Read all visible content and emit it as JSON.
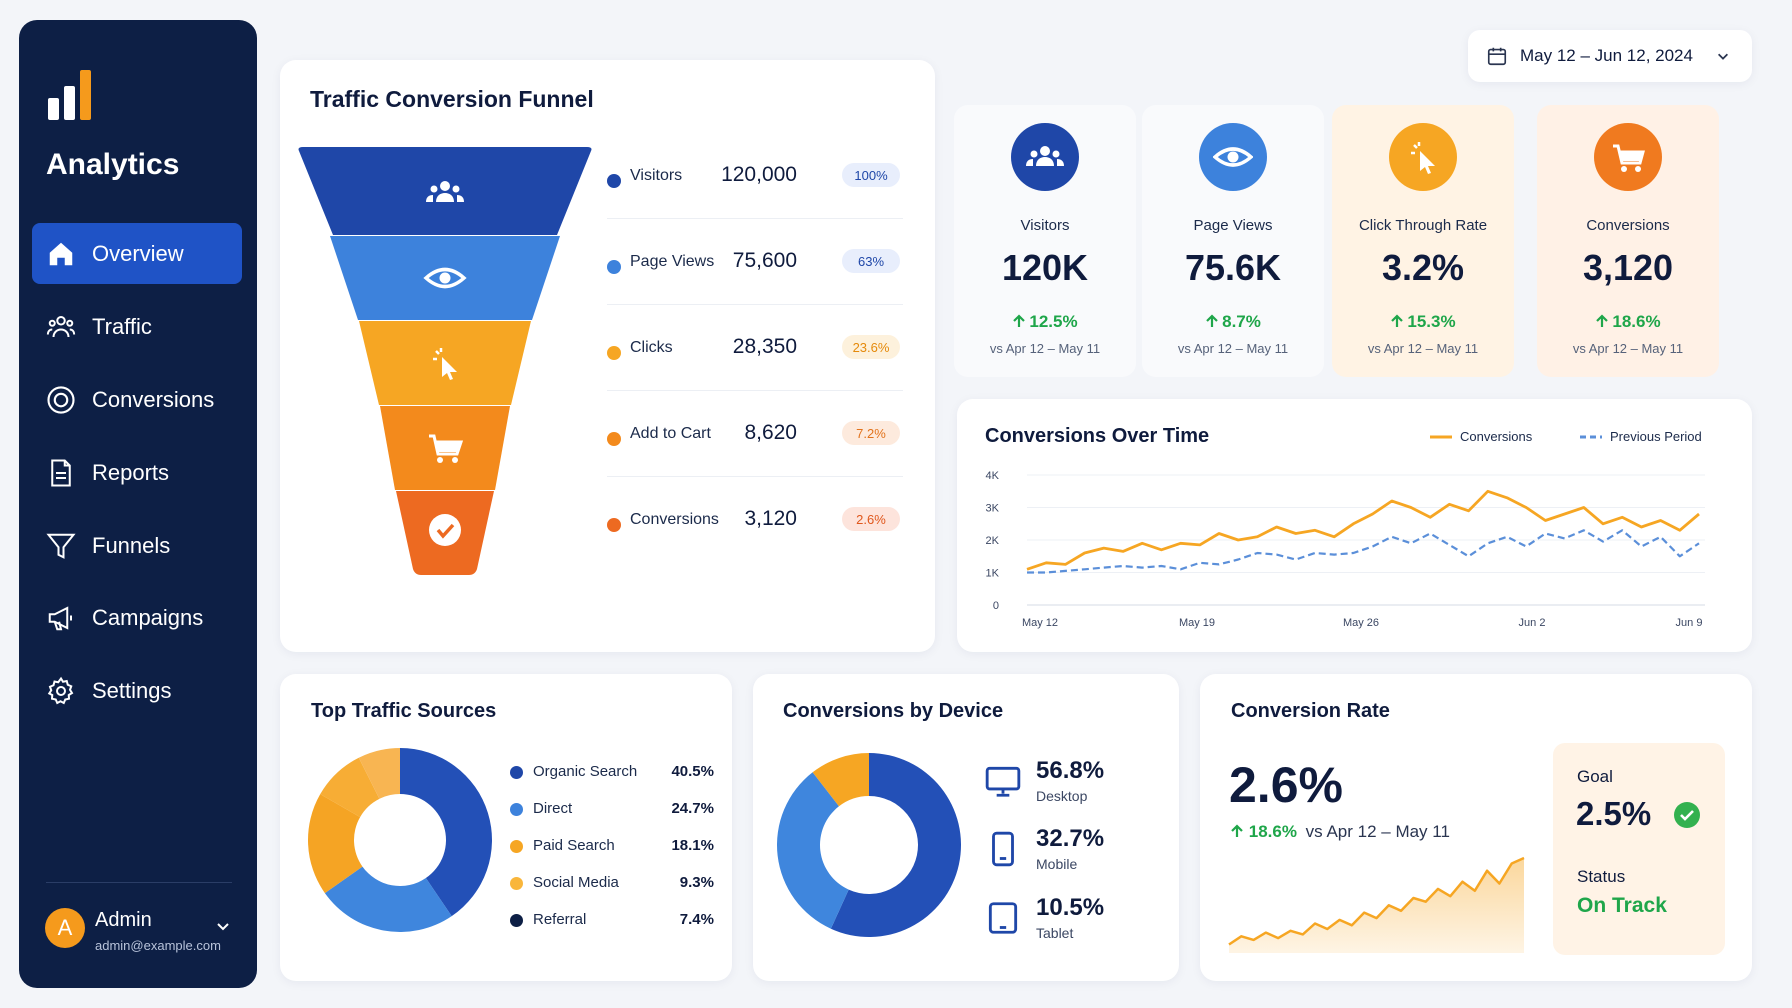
{
  "sidebar": {
    "app_name": "Analytics",
    "nav": [
      {
        "label": "Overview",
        "icon": "home-icon",
        "active": true
      },
      {
        "label": "Traffic",
        "icon": "users-icon"
      },
      {
        "label": "Conversions",
        "icon": "target-icon"
      },
      {
        "label": "Reports",
        "icon": "document-icon"
      },
      {
        "label": "Funnels",
        "icon": "filter-icon"
      },
      {
        "label": "Campaigns",
        "icon": "megaphone-icon"
      },
      {
        "label": "Settings",
        "icon": "gear-icon"
      }
    ],
    "user": {
      "initial": "A",
      "name": "Admin",
      "email": "admin@example.com"
    }
  },
  "date_range": {
    "label": "May 12 – Jun 12, 2024",
    "icon": "calendar-icon"
  },
  "funnel": {
    "title": "Traffic Conversion Funnel",
    "stages": [
      {
        "label": "Visitors",
        "value": "120,000",
        "pct": "100%",
        "color": "#1f47a8",
        "pct_bg": "#e8eefc",
        "pct_color": "#1f47a8",
        "icon": "users-icon"
      },
      {
        "label": "Page Views",
        "value": "75,600",
        "pct": "63%",
        "color": "#3d82dc",
        "pct_bg": "#e8eefc",
        "pct_color": "#1f47a8",
        "icon": "eye-icon"
      },
      {
        "label": "Clicks",
        "value": "28,350",
        "pct": "23.6%",
        "color": "#f6a623",
        "pct_bg": "#fdf1dc",
        "pct_color": "#e58a0c",
        "icon": "cursor-click-icon"
      },
      {
        "label": "Add to Cart",
        "value": "8,620",
        "pct": "7.2%",
        "color": "#f38a1c",
        "pct_bg": "#fdeadd",
        "pct_color": "#e2731c",
        "icon": "cart-icon"
      },
      {
        "label": "Conversions",
        "value": "3,120",
        "pct": "2.6%",
        "color": "#ed6a21",
        "pct_bg": "#fde4dc",
        "pct_color": "#e0571c",
        "icon": "check-icon"
      }
    ]
  },
  "kpis": [
    {
      "label": "Visitors",
      "value": "120K",
      "change": "12.5%",
      "compare": "vs Apr 12 – May 11",
      "icon": "users-icon",
      "color": "#1f47a8",
      "bg": "#f9fafc"
    },
    {
      "label": "Page Views",
      "value": "75.6K",
      "change": "8.7%",
      "compare": "vs Apr 12 – May 11",
      "icon": "eye-icon",
      "color": "#3d82dc",
      "bg": "#f9fafc"
    },
    {
      "label": "Click Through Rate",
      "value": "3.2%",
      "change": "15.3%",
      "compare": "vs Apr 12 – May 11",
      "icon": "cursor-click-icon",
      "color": "#f6a623",
      "bg": "#fff3e4"
    },
    {
      "label": "Conversions",
      "value": "3,120",
      "change": "18.6%",
      "compare": "vs Apr 12 – May 11",
      "icon": "cart-icon",
      "color": "#f07a1f",
      "bg": "#fff1e6"
    }
  ],
  "conversions_over_time": {
    "title": "Conversions Over Time",
    "chart_data": {
      "type": "line",
      "y_ticks": [
        "4K",
        "3K",
        "2K",
        "1K",
        "0"
      ],
      "x_labels": [
        "May 12",
        "May 19",
        "May 26",
        "Jun 2",
        "Jun 9"
      ],
      "ylim": [
        0,
        4000
      ],
      "series": [
        {
          "name": "Conversions",
          "color": "#f6a623",
          "dashed": false,
          "values": [
            1100,
            1300,
            1250,
            1600,
            1750,
            1650,
            1900,
            1700,
            1900,
            1850,
            2200,
            2000,
            2100,
            2400,
            2200,
            2300,
            2100,
            2500,
            2800,
            3200,
            3000,
            2700,
            3100,
            2900,
            3500,
            3300,
            3000,
            2600,
            2800,
            3000,
            2500,
            2700,
            2400,
            2600,
            2300,
            2800
          ]
        },
        {
          "name": "Previous Period",
          "color": "#5b8fd9",
          "dashed": true,
          "values": [
            1000,
            1000,
            1050,
            1100,
            1150,
            1200,
            1150,
            1200,
            1100,
            1300,
            1250,
            1400,
            1600,
            1550,
            1400,
            1600,
            1550,
            1600,
            1800,
            2100,
            1900,
            2200,
            1850,
            1500,
            1900,
            2100,
            1800,
            2200,
            2050,
            2300,
            1950,
            2300,
            1800,
            2100,
            1500,
            1900
          ]
        }
      ]
    }
  },
  "traffic_sources": {
    "title": "Top Traffic Sources",
    "chart_data": {
      "type": "pie",
      "donut": true,
      "labels": [
        "Organic Search",
        "Direct",
        "Paid Search",
        "Social Media",
        "Referral"
      ],
      "display": [
        "40.5%",
        "24.7%",
        "18.1%",
        "9.3%",
        "7.4%"
      ],
      "values": [
        40.5,
        24.7,
        18.1,
        9.3,
        7.4
      ],
      "colors": [
        "#1f47a8",
        "#3d82dc",
        "#f6a623",
        "#f9b63b",
        "#0d1f45"
      ],
      "slice_colors": [
        "#2350b7",
        "#3f86dd",
        "#f5a424",
        "#f7ad35",
        "#f8b552"
      ]
    }
  },
  "device": {
    "title": "Conversions by Device",
    "chart_data": {
      "type": "pie",
      "donut": true,
      "labels": [
        "Desktop",
        "Mobile",
        "Tablet"
      ],
      "display": [
        "56.8%",
        "32.7%",
        "10.5%"
      ],
      "values": [
        56.8,
        32.7,
        10.5
      ],
      "colors": [
        "#2350b7",
        "#3f86dd",
        "#f6a623"
      ]
    },
    "icons": [
      "desktop-icon",
      "mobile-icon",
      "tablet-icon"
    ]
  },
  "conversion_rate": {
    "title": "Conversion Rate",
    "value": "2.6%",
    "change": "18.6%",
    "compare": "vs Apr 12 – May 11",
    "goal_label": "Goal",
    "goal_value": "2.5%",
    "status_label": "Status",
    "status_value": "On Track",
    "spark": [
      5,
      14,
      10,
      18,
      12,
      20,
      16,
      28,
      22,
      32,
      26,
      40,
      34,
      48,
      42,
      56,
      52,
      66,
      58,
      74,
      64,
      86,
      72,
      94,
      100
    ]
  }
}
